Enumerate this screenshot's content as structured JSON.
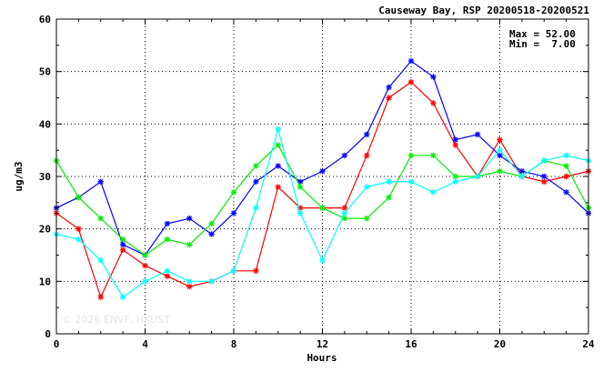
{
  "chart_data": {
    "type": "line",
    "title": "Causeway Bay, RSP 20200518-20200521",
    "xlabel": "Hours",
    "ylabel": "ug/m3",
    "xlim": [
      0,
      24
    ],
    "ylim": [
      0,
      60
    ],
    "xticks": [
      0,
      4,
      8,
      12,
      16,
      20,
      24
    ],
    "yticks": [
      0,
      10,
      20,
      30,
      40,
      50,
      60
    ],
    "grid": true,
    "stats": {
      "max_label": "Max = 52.00",
      "min_label": "Min =  7.00"
    },
    "watermark": "© 2026  ENVF, HKUST",
    "x": [
      0,
      1,
      2,
      3,
      4,
      5,
      6,
      7,
      8,
      9,
      10,
      11,
      12,
      13,
      14,
      15,
      16,
      17,
      18,
      19,
      20,
      21,
      22,
      23,
      24
    ],
    "series": [
      {
        "color": "#ff0000",
        "values": [
          23,
          20,
          7,
          16,
          13,
          11,
          9,
          10,
          12,
          12,
          28,
          24,
          24,
          24,
          34,
          45,
          48,
          44,
          36,
          30,
          37,
          30,
          29,
          30,
          31
        ]
      },
      {
        "color": "#0000ff",
        "values": [
          24,
          26,
          29,
          17,
          15,
          21,
          22,
          19,
          23,
          29,
          32,
          29,
          31,
          34,
          38,
          47,
          52,
          49,
          37,
          38,
          34,
          31,
          30,
          27,
          23
        ]
      },
      {
        "color": "#00ee00",
        "values": [
          33,
          26,
          22,
          18,
          15,
          18,
          17,
          21,
          27,
          32,
          36,
          28,
          24,
          22,
          22,
          26,
          34,
          34,
          30,
          30,
          31,
          30,
          33,
          32,
          24
        ]
      },
      {
        "color": "#00ffff",
        "values": [
          19,
          18,
          14,
          7,
          10,
          12,
          10,
          10,
          12,
          24,
          39,
          23,
          14,
          23,
          28,
          29,
          29,
          27,
          29,
          30,
          35,
          30,
          33,
          34,
          33
        ]
      }
    ]
  }
}
